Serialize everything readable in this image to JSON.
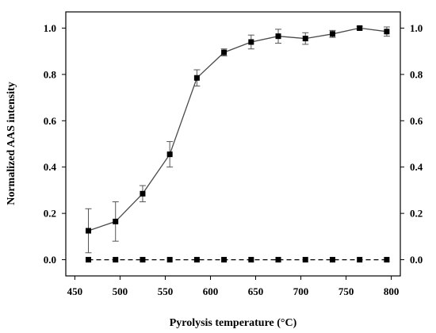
{
  "chart_data": {
    "type": "line",
    "xlabel": "Pyrolysis temperature (°C)",
    "ylabel": "Normalized AAS intensity",
    "xlim": [
      440,
      810
    ],
    "ylim": [
      -0.07,
      1.07
    ],
    "x_ticks": [
      450,
      500,
      550,
      600,
      650,
      700,
      750,
      800
    ],
    "x_tick_labels": [
      "450",
      "500",
      "550",
      "600",
      "650",
      "700",
      "750",
      "800"
    ],
    "y_ticks": [
      0.0,
      0.2,
      0.4,
      0.6,
      0.8,
      1.0
    ],
    "y_tick_labels": [
      "0.0",
      "0.2",
      "0.4",
      "0.6",
      "0.8",
      "1.0"
    ],
    "right_axis_labels": true,
    "grid": false,
    "legend": "none",
    "series": [
      {
        "line_style": "solid",
        "marker": "square",
        "color": "#4a4a4a",
        "x": [
          465,
          495,
          525,
          555,
          585,
          615,
          645,
          675,
          705,
          735,
          765,
          795
        ],
        "y": [
          0.125,
          0.165,
          0.285,
          0.455,
          0.785,
          0.895,
          0.94,
          0.965,
          0.955,
          0.975,
          1.0,
          0.985
        ],
        "error": [
          0.095,
          0.085,
          0.035,
          0.055,
          0.035,
          0.015,
          0.03,
          0.03,
          0.025,
          0.015,
          0.008,
          0.02
        ]
      },
      {
        "line_style": "dashed",
        "marker": "square",
        "color": "#000000",
        "x": [
          465,
          495,
          525,
          555,
          585,
          615,
          645,
          675,
          705,
          735,
          765,
          795
        ],
        "y": [
          0.0,
          0.0,
          0.0,
          0.0,
          0.0,
          0.0,
          0.0,
          0.0,
          0.0,
          0.0,
          0.0,
          0.0
        ],
        "error": []
      }
    ]
  }
}
